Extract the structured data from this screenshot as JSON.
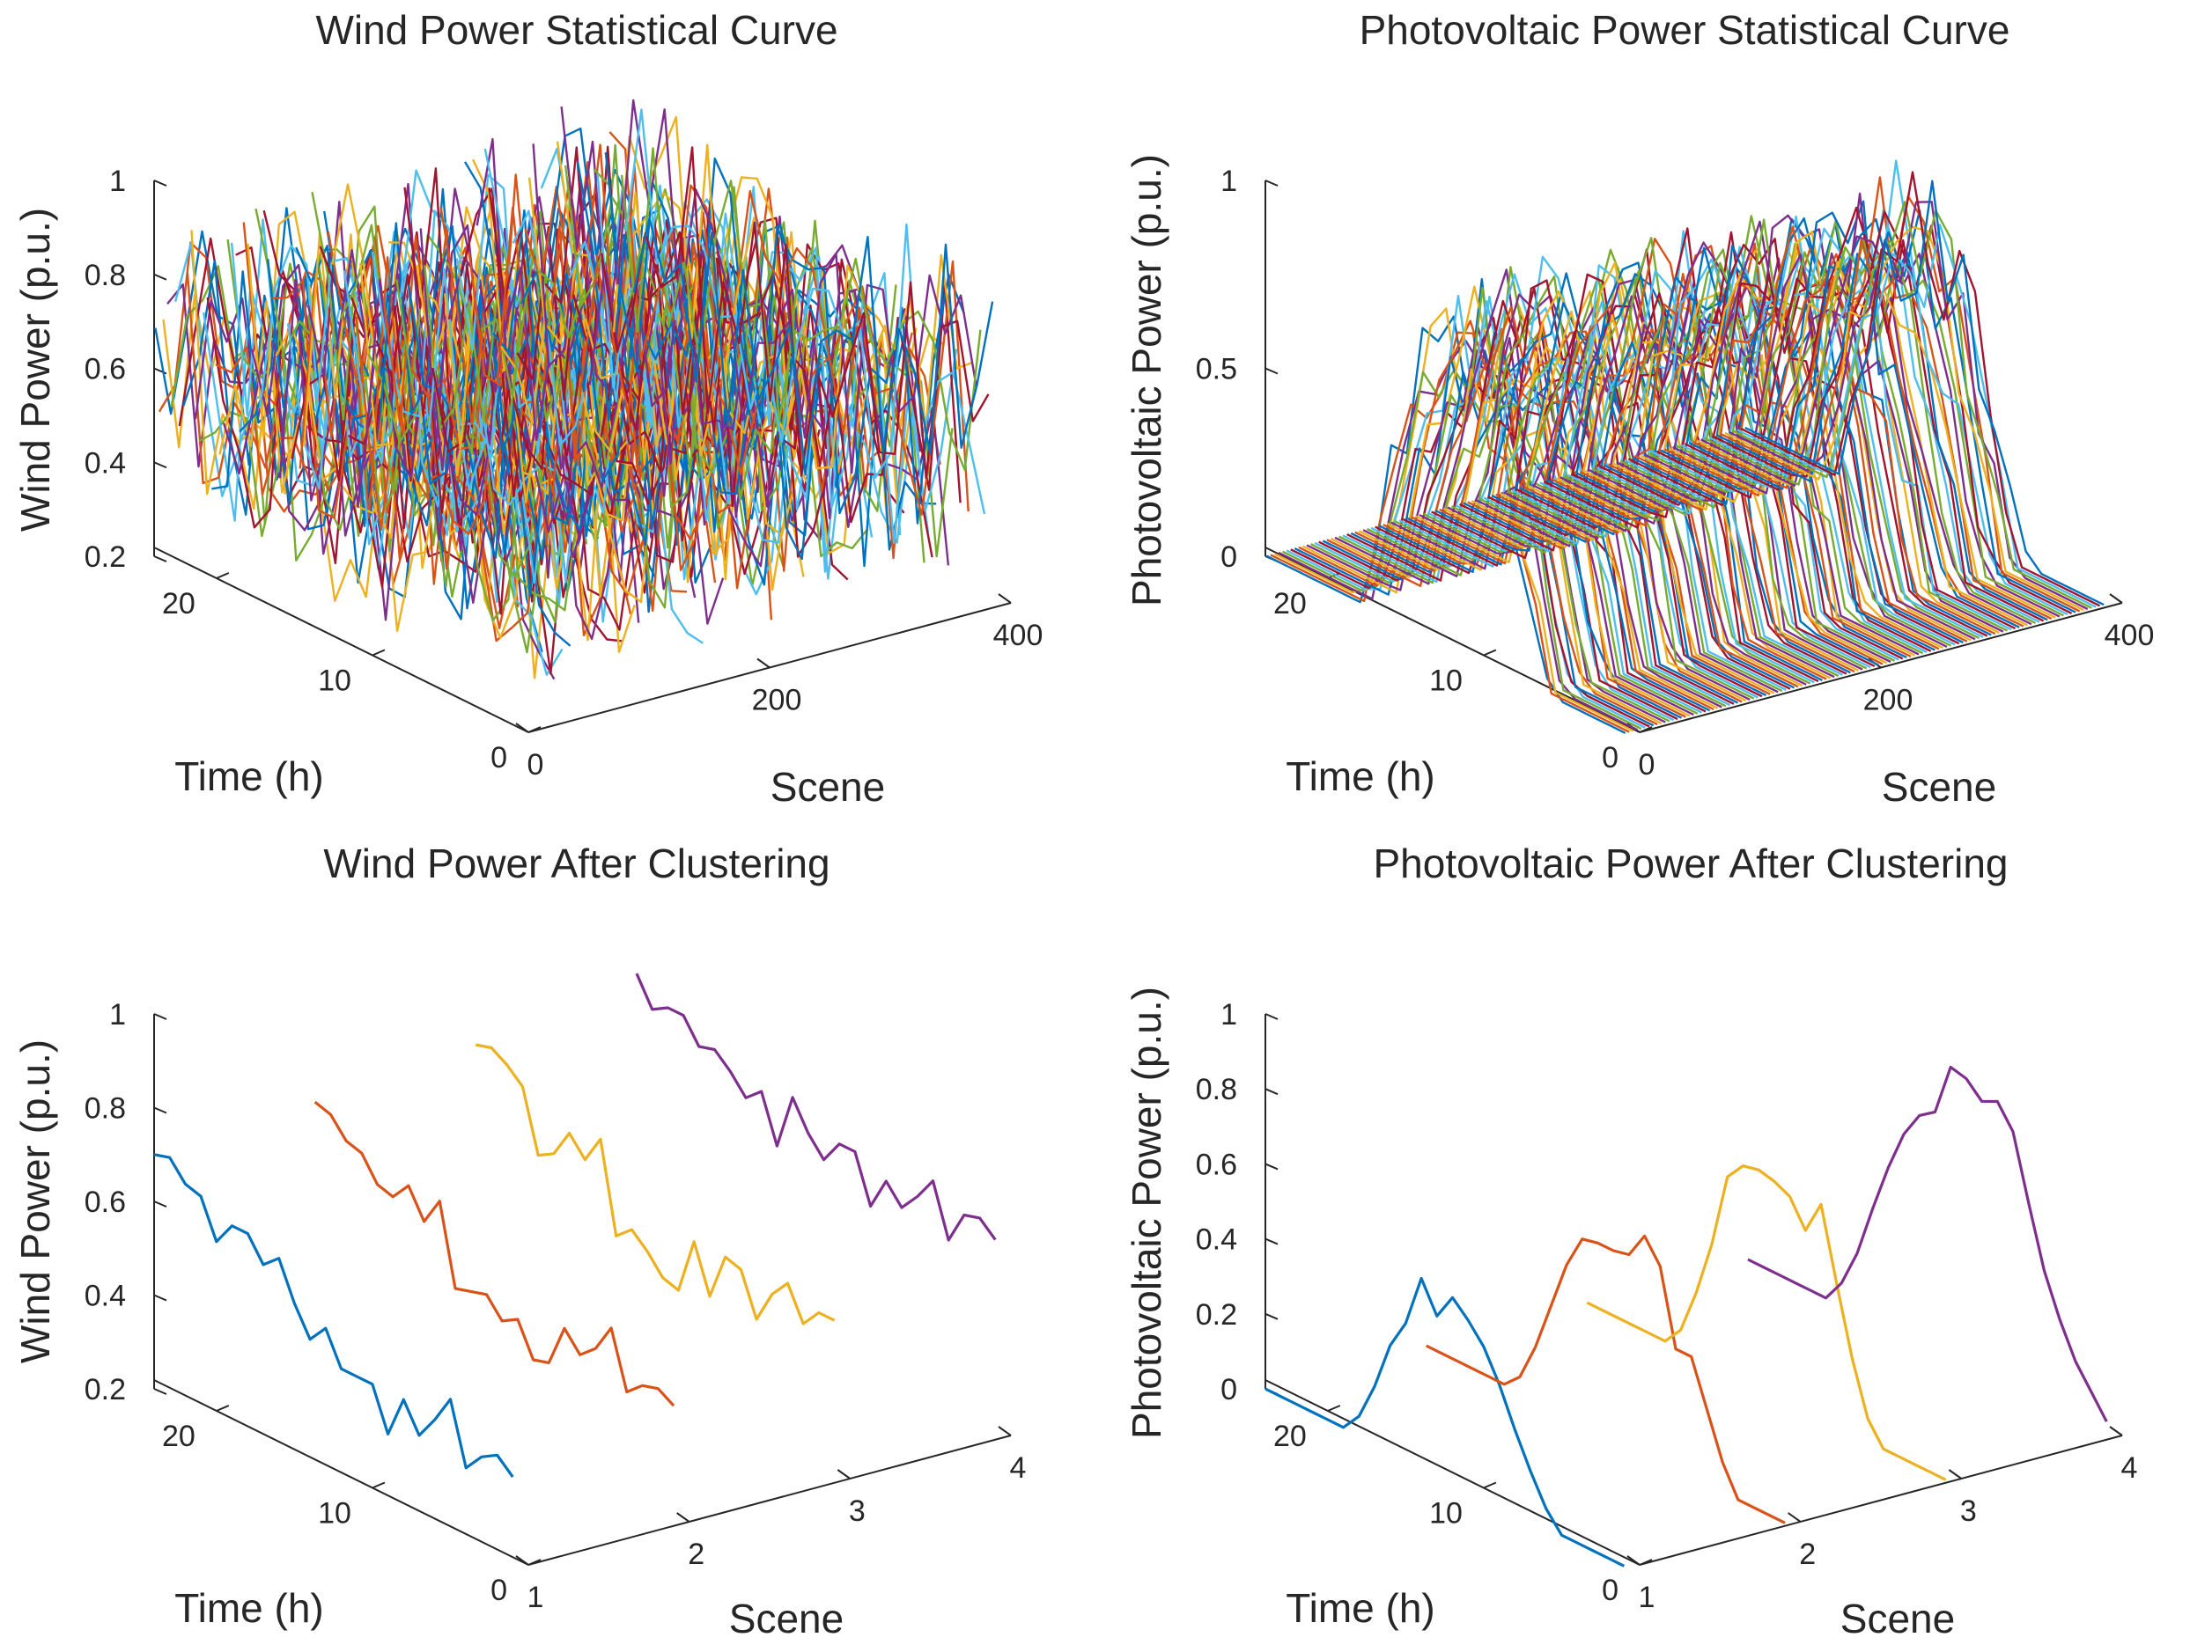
{
  "figure": {
    "background": "#ffffff",
    "axis_color": "#262626"
  },
  "colors": [
    "#0072BD",
    "#D95319",
    "#EDB120",
    "#7E2F8E",
    "#77AC30",
    "#4DBEEE",
    "#A2142F"
  ],
  "chart_data": [
    {
      "type": "line3d",
      "id": "wind-stat",
      "title": "Wind Power Statistical Curve",
      "xlabel": "Scene",
      "ylabel": "Time (h)",
      "zlabel": "Wind Power (p.u.)",
      "xlim": [
        0,
        400
      ],
      "ylim": [
        0,
        24
      ],
      "zlim": [
        0.2,
        1
      ],
      "xticks": [
        0,
        200,
        400
      ],
      "yticks": [
        0,
        10,
        20
      ],
      "zticks": [
        0.2,
        0.4,
        0.6,
        0.8,
        1
      ],
      "ztick_labels": [
        "0.2",
        "0.4",
        "0.6",
        "0.8",
        "1"
      ],
      "scene_count": 400,
      "hours": 24,
      "value_mean_range": [
        0.45,
        0.65
      ],
      "note": "400 scenario curves over 24 h, values fluctuating between ~0.3 and ~0.95"
    },
    {
      "type": "line3d",
      "id": "pv-stat",
      "title": "Photovoltaic Power Statistical Curve",
      "xlabel": "Scene",
      "ylabel": "Time (h)",
      "zlabel": "Photovoltaic Power (p.u.)",
      "xlim": [
        0,
        400
      ],
      "ylim": [
        0,
        24
      ],
      "zlim": [
        0,
        1
      ],
      "xticks": [
        0,
        200,
        400
      ],
      "yticks": [
        0,
        10,
        20
      ],
      "zticks": [
        0,
        0.5,
        1
      ],
      "ztick_labels": [
        "0",
        "0.5",
        "1"
      ],
      "scene_count": 400,
      "hours": 24,
      "daylight_hours": [
        6,
        18
      ],
      "peak_range": [
        0.6,
        0.95
      ],
      "note": "400 scenario curves, zero at night, bell-shaped daytime output"
    },
    {
      "type": "line3d",
      "id": "wind-cluster",
      "title": "Wind Power After Clustering",
      "xlabel": "Scene",
      "ylabel": "Time (h)",
      "zlabel": "Wind Power (p.u.)",
      "xlim": [
        1,
        4
      ],
      "ylim": [
        0,
        24
      ],
      "zlim": [
        0.2,
        1
      ],
      "xticks": [
        1,
        2,
        3,
        4
      ],
      "yticks": [
        0,
        10,
        20
      ],
      "zticks": [
        0.2,
        0.4,
        0.6,
        0.8,
        1
      ],
      "ztick_labels": [
        "0.2",
        "0.4",
        "0.6",
        "0.8",
        "1"
      ],
      "series": [
        {
          "name": "Scene 1",
          "scene": 1,
          "values": [
            0.7,
            0.71,
            0.67,
            0.66,
            0.58,
            0.63,
            0.63,
            0.58,
            0.61,
            0.53,
            0.47,
            0.51,
            0.44,
            0.44,
            0.44,
            0.35,
            0.44,
            0.38,
            0.43,
            0.49,
            0.36,
            0.4,
            0.42,
            0.39
          ]
        },
        {
          "name": "Scene 2",
          "scene": 2,
          "values": [
            0.72,
            0.71,
            0.67,
            0.66,
            0.61,
            0.6,
            0.64,
            0.58,
            0.64,
            0.47,
            0.48,
            0.49,
            0.45,
            0.47,
            0.4,
            0.41,
            0.5,
            0.46,
            0.49,
            0.55,
            0.43,
            0.46,
            0.47,
            0.45
          ]
        },
        {
          "name": "Scene 3",
          "scene": 3,
          "values": [
            0.75,
            0.76,
            0.74,
            0.71,
            0.58,
            0.6,
            0.66,
            0.62,
            0.68,
            0.49,
            0.52,
            0.49,
            0.45,
            0.44,
            0.56,
            0.46,
            0.56,
            0.55,
            0.46,
            0.53,
            0.57,
            0.5,
            0.54,
            0.54
          ]
        },
        {
          "name": "Scene 4",
          "scene": 4,
          "values": [
            0.81,
            0.75,
            0.77,
            0.77,
            0.72,
            0.73,
            0.7,
            0.66,
            0.69,
            0.59,
            0.71,
            0.65,
            0.61,
            0.66,
            0.66,
            0.56,
            0.63,
            0.59,
            0.63,
            0.68,
            0.57,
            0.64,
            0.65,
            0.62
          ]
        }
      ]
    },
    {
      "type": "line3d",
      "id": "pv-cluster",
      "title": "Photovoltaic Power After Clustering",
      "xlabel": "Scene",
      "ylabel": "Time (h)",
      "zlabel": "Photovoltaic Power (p.u.)",
      "xlim": [
        1,
        4
      ],
      "ylim": [
        0,
        24
      ],
      "zlim": [
        0,
        1
      ],
      "xticks": [
        1,
        2,
        3,
        4
      ],
      "yticks": [
        0,
        10,
        20
      ],
      "zticks": [
        0,
        0.2,
        0.4,
        0.6,
        0.8,
        1
      ],
      "ztick_labels": [
        "0",
        "0.2",
        "0.4",
        "0.6",
        "0.8",
        "1"
      ],
      "series": [
        {
          "name": "Scene 1",
          "scene": 1,
          "values": [
            0,
            0,
            0,
            0,
            0,
            0,
            0.05,
            0.15,
            0.28,
            0.36,
            0.5,
            0.42,
            0.49,
            0.45,
            0.4,
            0.32,
            0.22,
            0.13,
            0.05,
            0,
            0,
            0,
            0,
            0
          ]
        },
        {
          "name": "Scene 2",
          "scene": 2,
          "values": [
            0,
            0,
            0,
            0,
            0,
            0,
            0.04,
            0.14,
            0.27,
            0.4,
            0.49,
            0.5,
            0.5,
            0.51,
            0.58,
            0.52,
            0.32,
            0.32,
            0.2,
            0.08,
            0,
            0,
            0,
            0
          ]
        },
        {
          "name": "Scene 3",
          "scene": 3,
          "values": [
            0,
            0,
            0,
            0,
            0,
            0,
            0.05,
            0.17,
            0.32,
            0.52,
            0.57,
            0.58,
            0.57,
            0.55,
            0.48,
            0.57,
            0.38,
            0.2,
            0.06,
            0,
            0,
            0,
            0,
            0
          ]
        },
        {
          "name": "Scene 4",
          "scene": 4,
          "values": [
            0,
            0,
            0,
            0,
            0,
            0,
            0.06,
            0.16,
            0.3,
            0.43,
            0.54,
            0.61,
            0.64,
            0.78,
            0.77,
            0.73,
            0.75,
            0.69,
            0.52,
            0.36,
            0.25,
            0.16,
            0.1,
            0.04
          ]
        }
      ]
    }
  ]
}
